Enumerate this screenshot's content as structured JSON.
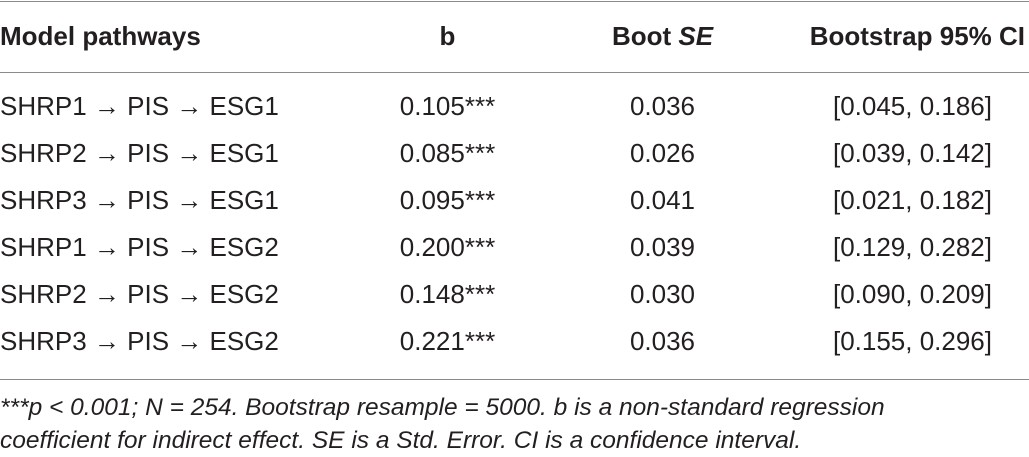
{
  "table": {
    "headers": {
      "col1": "Model pathways",
      "col2": "b",
      "col3_prefix": "Boot ",
      "col3_italic": "SE",
      "col4": "Bootstrap 95% CI"
    },
    "rows": [
      {
        "pathway": "SHRP1 → PIS → ESG1",
        "b": "0.105***",
        "se": "0.036",
        "ci": "[0.045, 0.186]"
      },
      {
        "pathway": "SHRP2 → PIS → ESG1",
        "b": "0.085***",
        "se": "0.026",
        "ci": "[0.039, 0.142]"
      },
      {
        "pathway": "SHRP3 → PIS → ESG1",
        "b": "0.095***",
        "se": "0.041",
        "ci": "[0.021, 0.182]"
      },
      {
        "pathway": "SHRP1 → PIS → ESG2",
        "b": "0.200***",
        "se": "0.039",
        "ci": "[0.129, 0.282]"
      },
      {
        "pathway": "SHRP2 → PIS → ESG2",
        "b": "0.148***",
        "se": "0.030",
        "ci": "[0.090, 0.209]"
      },
      {
        "pathway": "SHRP3 → PIS → ESG2",
        "b": "0.221***",
        "se": "0.036",
        "ci": "[0.155, 0.296]"
      }
    ]
  },
  "footnote": {
    "line1": "***p < 0.001; N = 254. Bootstrap resample = 5000. b is a non-standard regression",
    "line2": "coefficient for indirect effect. SE is a Std. Error. CI is a confidence interval."
  }
}
